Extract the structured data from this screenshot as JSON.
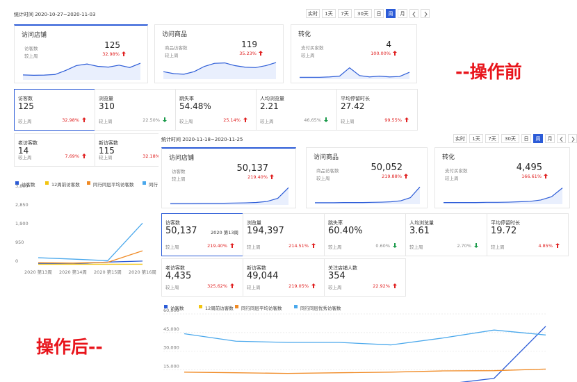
{
  "before": {
    "header": "统计时间 2020-10-27~2020-11-03",
    "buttons": [
      "实时",
      "1天",
      "7天",
      "30天",
      "日",
      "周",
      "月"
    ],
    "active_button": 5,
    "active_card": 0,
    "active_metric": 0,
    "cards": [
      {
        "title": "访问店铺",
        "metric": "访客数",
        "value": "125",
        "compare": "较上周",
        "change": "32.98%",
        "trend": "up",
        "sparkline": [
          22,
          20,
          21,
          24,
          45,
          70,
          78,
          66,
          62,
          72,
          60,
          82
        ]
      },
      {
        "title": "访问商品",
        "metric": "商品访客数",
        "value": "119",
        "compare": "较上周",
        "change": "35.23%",
        "trend": "up",
        "sparkline": [
          35,
          25,
          22,
          35,
          62,
          78,
          80,
          66,
          58,
          56,
          66,
          82
        ]
      },
      {
        "title": "转化",
        "metric": "支付买家数",
        "value": "4",
        "compare": "较上周",
        "change": "100.00%",
        "trend": "up",
        "sparkline": [
          6,
          6,
          6,
          8,
          12,
          55,
          15,
          8,
          12,
          8,
          10,
          32
        ]
      }
    ],
    "metrics": [
      {
        "label": "访客数",
        "value": "125",
        "compare": "较上周",
        "change": "32.98%",
        "trend": "up"
      },
      {
        "label": "浏览量",
        "value": "310",
        "compare": "较上周",
        "change": "22.50%",
        "trend": "down"
      },
      {
        "label": "跳失率",
        "value": "54.48%",
        "compare": "较上周",
        "change": "25.14%",
        "trend": "up"
      },
      {
        "label": "人均浏览量",
        "value": "2.21",
        "compare": "较上周",
        "change": "46.65%",
        "trend": "down"
      },
      {
        "label": "平均停留时长",
        "value": "27.42",
        "compare": "较上周",
        "change": "99.55%",
        "trend": "up"
      }
    ],
    "metrics2": [
      {
        "label": "老访客数",
        "value": "14",
        "compare": "较上周",
        "change": "7.69%",
        "trend": "up"
      },
      {
        "label": "新访客数",
        "value": "115",
        "compare": "较上周",
        "change": "32.18%",
        "trend": "up"
      }
    ],
    "chart": {
      "type": "line",
      "categories": [
        "2020 第13周",
        "2020 第14周",
        "2020 第15周",
        "2020 第16周"
      ],
      "series": [
        {
          "name": "访客数",
          "color": "#2b5bd7",
          "values": [
            60,
            40,
            130,
            180
          ]
        },
        {
          "name": "12周前访客数",
          "color": "#f2c511",
          "values": [
            20,
            20,
            20,
            20
          ]
        },
        {
          "name": "同行同层平均访客数",
          "color": "#f08a24",
          "values": [
            100,
            80,
            120,
            700
          ]
        },
        {
          "name": "同行",
          "color": "#4aa8ec",
          "values": [
            350,
            280,
            200,
            2100
          ]
        }
      ],
      "ylim": [
        0,
        3800
      ],
      "yticks": [
        0,
        950,
        {
          "value": 1900,
          "label": "1,900"
        },
        {
          "value": 2850,
          "label": "2,850"
        },
        {
          "value": 3800,
          "label": "3,800"
        }
      ],
      "grid": false
    }
  },
  "after": {
    "header": "统计时间 2020-11-18~2020-11-25",
    "buttons": [
      "实时",
      "1天",
      "7天",
      "30天",
      "日",
      "周",
      "月"
    ],
    "active_button": 5,
    "active_card": 0,
    "active_metric": 0,
    "cards": [
      {
        "title": "访问店铺",
        "metric": "访客数",
        "value": "50,137",
        "compare": "较上周",
        "change": "219.40%",
        "trend": "up",
        "sparkline": [
          4,
          4,
          4,
          5,
          5,
          5,
          6,
          7,
          9,
          14,
          30,
          85
        ]
      },
      {
        "title": "访问商品",
        "metric": "商品访客数",
        "value": "50,052",
        "compare": "较上周",
        "change": "219.88%",
        "trend": "up",
        "sparkline": [
          4,
          4,
          4,
          5,
          5,
          5,
          6,
          7,
          9,
          14,
          30,
          85
        ]
      },
      {
        "title": "转化",
        "metric": "支付买家数",
        "value": "4,495",
        "compare": "较上周",
        "change": "166.61%",
        "trend": "up",
        "sparkline": [
          5,
          5,
          5,
          5,
          6,
          6,
          7,
          9,
          11,
          18,
          35,
          80
        ]
      }
    ],
    "metrics": [
      {
        "label": "访客数",
        "value": "50,137",
        "note": "2020 第13周",
        "compare": "较上周",
        "change": "219.40%",
        "trend": "up"
      },
      {
        "label": "浏览量",
        "value": "194,397",
        "compare": "较上周",
        "change": "214.51%",
        "trend": "up"
      },
      {
        "label": "跳失率",
        "value": "60.40%",
        "compare": "较上周",
        "change": "0.60%",
        "trend": "down"
      },
      {
        "label": "人均浏览量",
        "value": "3.61",
        "compare": "较上周",
        "change": "2.70%",
        "trend": "down"
      },
      {
        "label": "平均停留时长",
        "value": "19.72",
        "compare": "较上周",
        "change": "4.85%",
        "trend": "up"
      }
    ],
    "metrics2": [
      {
        "label": "老访客数",
        "value": "4,435",
        "compare": "较上周",
        "change": "325.62%",
        "trend": "up"
      },
      {
        "label": "新访客数",
        "value": "49,044",
        "compare": "较上周",
        "change": "219.05%",
        "trend": "up"
      },
      {
        "label": "关注店铺人数",
        "value": "354",
        "compare": "较上周",
        "change": "22.92%",
        "trend": "up"
      }
    ],
    "chart": {
      "type": "line",
      "categories": [
        null,
        null,
        null,
        null,
        null,
        null,
        null,
        null
      ],
      "series": [
        {
          "name": "访客数",
          "color": "#2b5bd7",
          "values": [
            null,
            null,
            null,
            null,
            null,
            3000,
            8000,
            50000
          ]
        },
        {
          "name": "12周前访客数",
          "color": "#f2c511"
        },
        {
          "name": "同行同层平均访客数",
          "color": "#f08a24",
          "values": [
            13000,
            12500,
            12000,
            12500,
            13000,
            14000,
            14200,
            15500
          ]
        },
        {
          "name": "同行同层优秀访客数",
          "color": "#4aa8ec",
          "values": [
            44000,
            38000,
            37000,
            37000,
            35000,
            40500,
            47000,
            43000
          ]
        }
      ],
      "ylim": [
        0,
        60000
      ],
      "yticks": [
        {
          "value": 15000,
          "label": "15,000"
        },
        {
          "value": 30000,
          "label": "30,000"
        },
        {
          "value": 45000,
          "label": "45,000"
        },
        {
          "value": 60000,
          "label": "60,000"
        }
      ],
      "grid": true
    }
  },
  "annotations": {
    "before": "--操作前",
    "after": "操作后--"
  }
}
